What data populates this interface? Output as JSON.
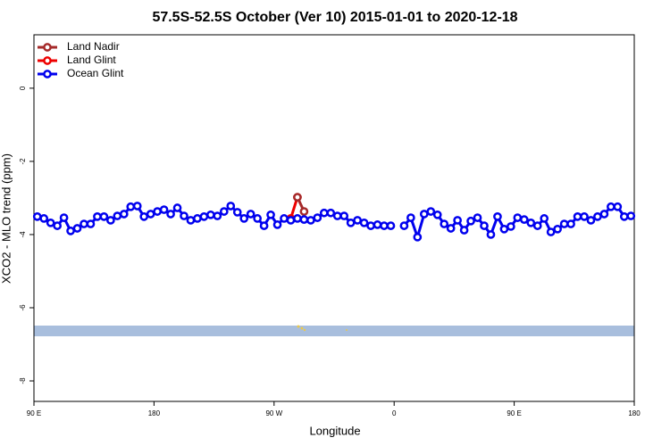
{
  "chart_data": {
    "type": "line",
    "title": "57.5S-52.5S October (Ver 10)   2015-01-01 to 2020-12-18",
    "xlabel": "Longitude",
    "ylabel": "XCO2 - MLO trend (ppm)",
    "xlim": [
      90,
      540
    ],
    "ylim": [
      -8.56,
      1.46
    ],
    "xticks": [
      {
        "value": 90,
        "label": "90 E"
      },
      180,
      {
        "value": 270,
        "label": "90 W"
      },
      {
        "value": 360,
        "label": "0"
      },
      {
        "value": 450,
        "label": "90 E"
      },
      {
        "value": 540,
        "label": "180"
      }
    ],
    "yticks": [
      0,
      -2,
      -4,
      -6,
      -8
    ],
    "legend": "top-left",
    "series": [
      {
        "name": "Land Nadir",
        "color": "#a52a2a",
        "x": [
          287.5,
          292.5
        ],
        "values": [
          -2.98,
          -3.37
        ]
      },
      {
        "name": "Land Glint",
        "color": "#ee0000",
        "x": [
          282.5,
          287.5
        ],
        "values": [
          -3.56,
          -2.98
        ]
      },
      {
        "name": "Ocean Glint",
        "color": "#0000ee",
        "x": [
          92.5,
          97.5,
          102.5,
          107.5,
          112.5,
          117.5,
          122.5,
          127.5,
          132.5,
          137.5,
          142.5,
          147.5,
          152.5,
          157.5,
          162.5,
          167.5,
          172.5,
          177.5,
          182.5,
          187.5,
          192.5,
          197.5,
          202.5,
          207.5,
          212.5,
          217.5,
          222.5,
          227.5,
          232.5,
          237.5,
          242.5,
          247.5,
          252.5,
          257.5,
          262.5,
          267.5,
          272.5,
          277.5,
          282.5,
          287.5,
          292.5,
          297.5,
          302.5,
          307.5,
          312.5,
          317.5,
          322.5,
          327.5,
          332.5,
          337.5,
          342.5,
          347.5,
          352.5,
          357.5,
          362.5,
          367.5,
          372.5,
          377.5,
          382.5,
          387.5,
          392.5,
          397.5,
          402.5,
          407.5,
          412.5,
          417.5,
          422.5,
          427.5,
          432.5,
          437.5,
          442.5,
          447.5,
          452.5,
          457.5,
          462.5,
          467.5,
          472.5,
          477.5,
          482.5,
          487.5,
          492.5,
          497.5,
          502.5,
          507.5,
          512.5,
          517.5,
          522.5,
          527.5,
          532.5,
          537.5
        ],
        "values": [
          -3.51,
          -3.56,
          -3.68,
          -3.76,
          -3.54,
          -3.9,
          -3.83,
          -3.71,
          -3.71,
          -3.51,
          -3.51,
          -3.61,
          -3.49,
          -3.44,
          -3.24,
          -3.22,
          -3.51,
          -3.44,
          -3.37,
          -3.32,
          -3.44,
          -3.27,
          -3.49,
          -3.61,
          -3.56,
          -3.51,
          -3.46,
          -3.49,
          -3.37,
          -3.22,
          -3.39,
          -3.56,
          -3.44,
          -3.56,
          -3.76,
          -3.46,
          -3.73,
          -3.56,
          -3.61,
          -3.56,
          -3.59,
          -3.61,
          -3.54,
          -3.41,
          -3.41,
          -3.49,
          -3.49,
          -3.68,
          -3.61,
          -3.68,
          -3.76,
          -3.73,
          -3.76,
          -3.76,
          null,
          -3.76,
          -3.54,
          -4.07,
          -3.44,
          -3.37,
          -3.46,
          -3.71,
          -3.83,
          -3.61,
          -3.88,
          -3.63,
          -3.54,
          -3.76,
          -4.0,
          -3.51,
          -3.85,
          -3.78,
          -3.54,
          -3.59,
          -3.68,
          -3.76,
          -3.56,
          -3.93,
          -3.85,
          -3.71,
          -3.71,
          -3.51,
          -3.51,
          -3.61,
          -3.51,
          -3.44,
          -3.24,
          -3.24,
          -3.51,
          -3.49
        ]
      }
    ]
  }
}
